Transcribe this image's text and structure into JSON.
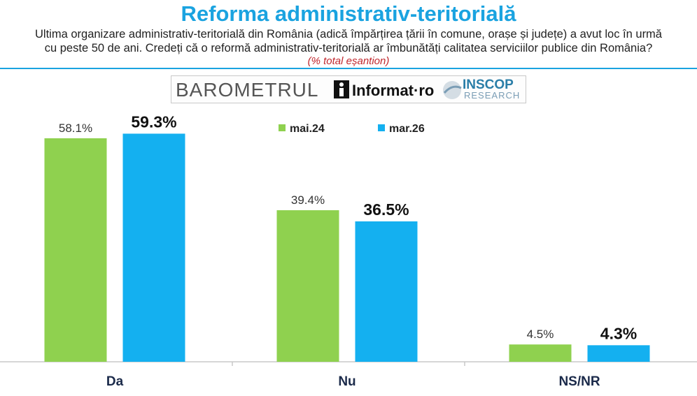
{
  "header": {
    "title": "Reforma administrativ-teritorială",
    "question_line1": "Ultima organizare administrativ-teritorială din România (adică împărțirea țării în comune, orașe și județe) a avut loc în urmă",
    "question_line2": "cu peste 50 de ani. Credeți că o reformă administrativ-teritorială ar îmbunătăți calitatea serviciilor publice din România?",
    "note": "(% total eșantion)"
  },
  "logos": {
    "barometrul": "BAROMETRUL",
    "informat": "Informat·ro",
    "inscop": "INSCOP",
    "research": "RESEARCH"
  },
  "colors": {
    "title": "#1aa3e0",
    "series_1": "#8fd14f",
    "series_2": "#14b0f0",
    "note": "#c0272d"
  },
  "chart_data": {
    "type": "bar",
    "categories": [
      "Da",
      "Nu",
      "NS/NR"
    ],
    "series": [
      {
        "name": "mai.24",
        "values": [
          58.1,
          39.4,
          4.5
        ],
        "labels": [
          "58.1%",
          "39.4%",
          "4.5%"
        ],
        "color": "#8fd14f"
      },
      {
        "name": "mar.26",
        "values": [
          59.3,
          36.5,
          4.3
        ],
        "labels": [
          "59.3%",
          "36.5%",
          "4.3%"
        ],
        "color": "#14b0f0"
      }
    ],
    "ylim": [
      0,
      65
    ],
    "legend": "top-center",
    "grid": false
  }
}
